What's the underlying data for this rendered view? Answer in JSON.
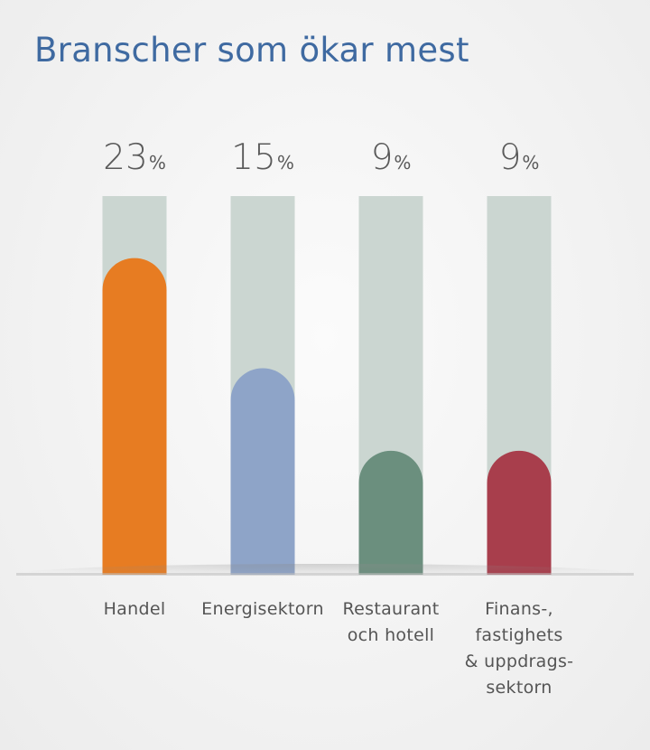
{
  "title": "Branscher som ökar mest",
  "chart_data": {
    "type": "bar",
    "title": "Branscher som ökar mest",
    "categories": [
      "Handel",
      "Energisektorn",
      "Restaurant och hotell",
      "Finans-, fastighets & uppdrags-sektorn"
    ],
    "values": [
      23,
      15,
      9,
      9
    ],
    "unit": "%",
    "value_labels": [
      {
        "num": "23",
        "unit": "%"
      },
      {
        "num": "15",
        "unit": "%"
      },
      {
        "num": "9",
        "unit": "%"
      },
      {
        "num": "9",
        "unit": "%"
      }
    ],
    "label_lines": [
      [
        "Handel"
      ],
      [
        "Energisektorn"
      ],
      [
        "Restaurant",
        "och hotell"
      ],
      [
        "Finans-,",
        "fastighets",
        "& uppdrags-",
        "sektorn"
      ]
    ],
    "ylim": [
      0,
      27.5
    ],
    "xlabel": "",
    "ylabel": "",
    "colors": [
      "#e77c22",
      "#8ea4c8",
      "#6b8f7e",
      "#a83e4c"
    ],
    "track_color": "#cbd6d1",
    "grid": false
  }
}
